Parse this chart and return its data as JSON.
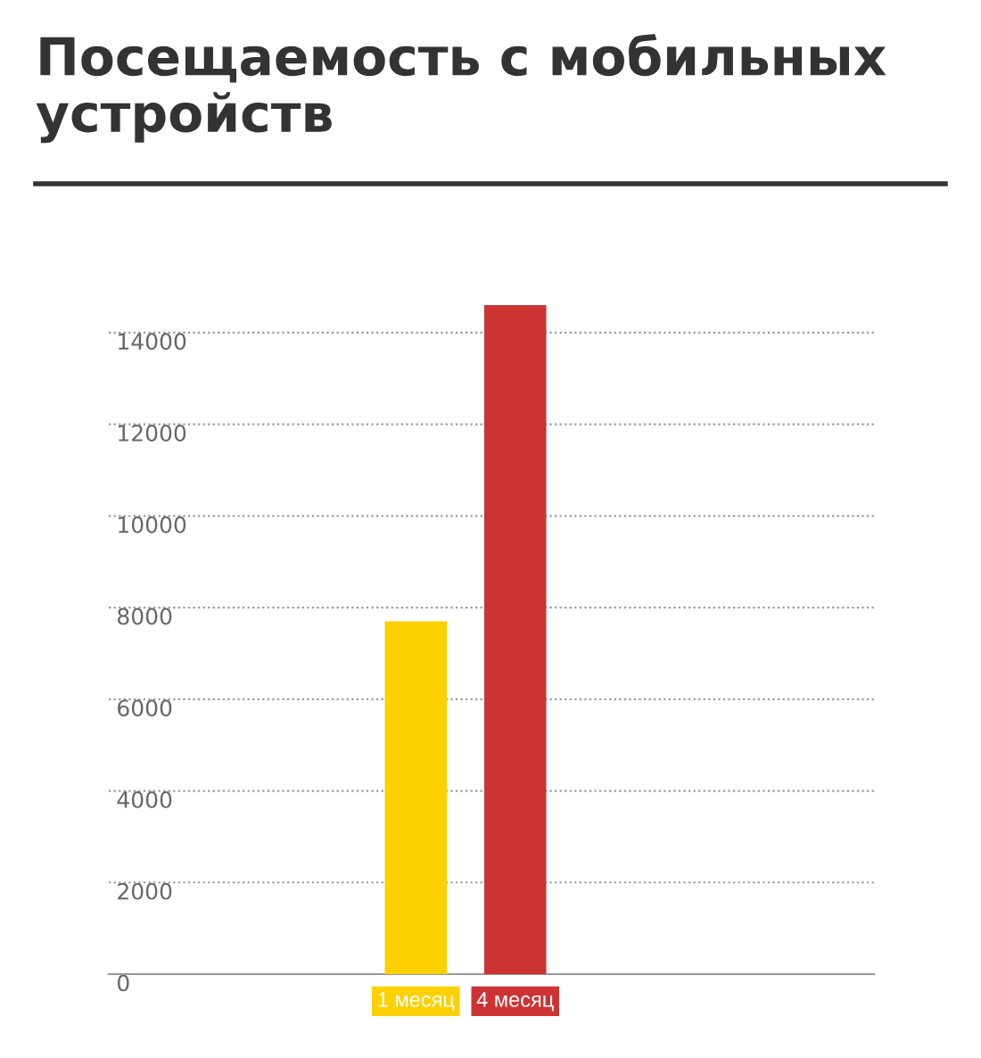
{
  "chart_data": {
    "type": "bar",
    "title": "Посещаемость с мобильных устройств",
    "categories": [
      "1 месяц",
      "4 месяц"
    ],
    "values": [
      7700,
      14600
    ],
    "colors": [
      "#fdd000",
      "#cc3434"
    ],
    "ylim": [
      0,
      14600
    ],
    "yticks": [
      0,
      2000,
      4000,
      6000,
      8000,
      10000,
      12000,
      14000
    ],
    "grid": "y"
  }
}
